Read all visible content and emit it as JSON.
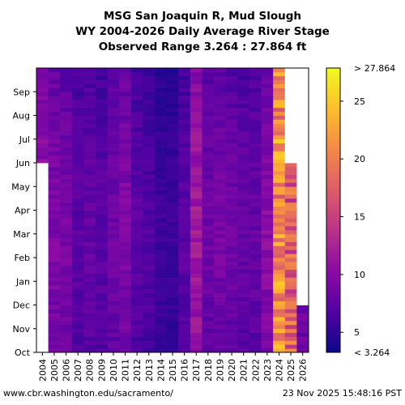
{
  "chart_data": {
    "type": "heatmap",
    "title_lines": [
      "MSG San Joaquin R, Mud Slough",
      "WY 2004-2026 Daily Average River Stage",
      "Observed Range 3.264 : 27.864 ft"
    ],
    "x_categories": [
      "2004",
      "2005",
      "2006",
      "2007",
      "2008",
      "2009",
      "2010",
      "2011",
      "2012",
      "2013",
      "2014",
      "2015",
      "2016",
      "2017",
      "2018",
      "2019",
      "2020",
      "2021",
      "2022",
      "2023",
      "2024",
      "2025",
      "2026"
    ],
    "y_months": [
      "Oct",
      "Nov",
      "Dec",
      "Jan",
      "Feb",
      "Mar",
      "Apr",
      "May",
      "Jun",
      "Jul",
      "Aug",
      "Sep"
    ],
    "colorbar": {
      "colormap": "plasma",
      "vmin": 3.264,
      "vmax": 27.864,
      "ticks": [
        5,
        10,
        15,
        20,
        25
      ],
      "under_label": "< 3.264",
      "over_label": "> 27.864"
    },
    "year_typical_stage_ft": [
      9.5,
      8.5,
      8.0,
      6.5,
      7.0,
      6.5,
      7.5,
      8.5,
      6.5,
      6.0,
      5.0,
      5.0,
      6.5,
      10.5,
      7.5,
      8.0,
      7.5,
      7.0,
      7.0,
      9.0,
      21.0,
      17.0,
      8.0
    ],
    "data_coverage": [
      {
        "year": "2004",
        "first_month": "Jun",
        "note": "no data Oct-May"
      },
      {
        "year": "2025",
        "last_month": "May"
      },
      {
        "year": "2026",
        "last_month": "Nov"
      }
    ]
  },
  "footer": {
    "source": "www.cbr.washington.edu/sacramento/",
    "timestamp": "23 Nov 2025 15:48:16 PST"
  }
}
